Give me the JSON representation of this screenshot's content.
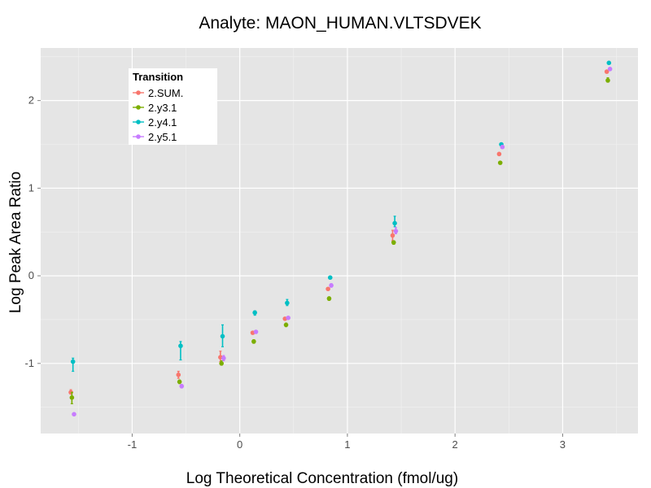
{
  "chart_data": {
    "type": "scatter",
    "title": "Analyte: MAON_HUMAN.VLTSDVEK",
    "xlabel": "Log Theoretical Concentration (fmol/ug)",
    "ylabel": "Log Peak Area Ratio",
    "xlim": [
      -1.85,
      3.7
    ],
    "ylim": [
      -1.8,
      2.6
    ],
    "xticks": [
      -1,
      0,
      1,
      2,
      3
    ],
    "yticks": [
      -1,
      0,
      1,
      2
    ],
    "grid": true,
    "legend": {
      "title": "Transition",
      "placement": "top-left"
    },
    "series": [
      {
        "name": "2.SUM.",
        "color": "#F8766D",
        "points": [
          {
            "x": -1.57,
            "y": -1.33,
            "lo": -1.35,
            "hi": -1.3
          },
          {
            "x": -0.57,
            "y": -1.13,
            "lo": -1.17,
            "hi": -1.09
          },
          {
            "x": -0.18,
            "y": -0.93,
            "lo": -0.98,
            "hi": -0.86
          },
          {
            "x": 0.12,
            "y": -0.65,
            "lo": -0.66,
            "hi": -0.64
          },
          {
            "x": 0.42,
            "y": -0.49,
            "lo": -0.5,
            "hi": -0.48
          },
          {
            "x": 0.82,
            "y": -0.15,
            "lo": -0.16,
            "hi": -0.14
          },
          {
            "x": 1.42,
            "y": 0.46,
            "lo": 0.4,
            "hi": 0.52
          },
          {
            "x": 2.41,
            "y": 1.39,
            "lo": 1.38,
            "hi": 1.4
          },
          {
            "x": 3.41,
            "y": 2.33,
            "lo": 2.32,
            "hi": 2.34
          }
        ]
      },
      {
        "name": "2.y3.1",
        "color": "#7CAE00",
        "points": [
          {
            "x": -1.56,
            "y": -1.39,
            "lo": -1.46,
            "hi": -1.33
          },
          {
            "x": -0.56,
            "y": -1.21,
            "lo": -1.23,
            "hi": -1.19
          },
          {
            "x": -0.17,
            "y": -1.0,
            "lo": -1.02,
            "hi": -0.97
          },
          {
            "x": 0.13,
            "y": -0.75,
            "lo": -0.77,
            "hi": -0.73
          },
          {
            "x": 0.43,
            "y": -0.56,
            "lo": -0.58,
            "hi": -0.54
          },
          {
            "x": 0.83,
            "y": -0.26,
            "lo": -0.28,
            "hi": -0.24
          },
          {
            "x": 1.43,
            "y": 0.38,
            "lo": 0.36,
            "hi": 0.4
          },
          {
            "x": 2.42,
            "y": 1.29,
            "lo": 1.28,
            "hi": 1.3
          },
          {
            "x": 3.42,
            "y": 2.23,
            "lo": 2.21,
            "hi": 2.26
          }
        ]
      },
      {
        "name": "2.y4.1",
        "color": "#00BFC4",
        "points": [
          {
            "x": -1.55,
            "y": -0.98,
            "lo": -1.09,
            "hi": -0.94
          },
          {
            "x": -0.55,
            "y": -0.8,
            "lo": -0.96,
            "hi": -0.75
          },
          {
            "x": -0.16,
            "y": -0.69,
            "lo": -0.81,
            "hi": -0.56
          },
          {
            "x": 0.14,
            "y": -0.42,
            "lo": -0.45,
            "hi": -0.4
          },
          {
            "x": 0.44,
            "y": -0.31,
            "lo": -0.34,
            "hi": -0.27
          },
          {
            "x": 0.84,
            "y": -0.02,
            "lo": -0.03,
            "hi": -0.01
          },
          {
            "x": 1.44,
            "y": 0.6,
            "lo": 0.56,
            "hi": 0.68
          },
          {
            "x": 2.43,
            "y": 1.5,
            "lo": 1.49,
            "hi": 1.51
          },
          {
            "x": 3.43,
            "y": 2.43,
            "lo": 2.42,
            "hi": 2.44
          }
        ]
      },
      {
        "name": "2.y5.1",
        "color": "#C77CFF",
        "points": [
          {
            "x": -1.54,
            "y": -1.58,
            "lo": -1.59,
            "hi": -1.57
          },
          {
            "x": -0.54,
            "y": -1.26,
            "lo": -1.28,
            "hi": -1.24
          },
          {
            "x": -0.15,
            "y": -0.94,
            "lo": -0.97,
            "hi": -0.91
          },
          {
            "x": 0.15,
            "y": -0.64,
            "lo": -0.65,
            "hi": -0.63
          },
          {
            "x": 0.45,
            "y": -0.48,
            "lo": -0.49,
            "hi": -0.47
          },
          {
            "x": 0.85,
            "y": -0.11,
            "lo": -0.13,
            "hi": -0.09
          },
          {
            "x": 1.45,
            "y": 0.51,
            "lo": 0.48,
            "hi": 0.55
          },
          {
            "x": 2.44,
            "y": 1.47,
            "lo": 1.46,
            "hi": 1.48
          },
          {
            "x": 3.44,
            "y": 2.36,
            "lo": 2.35,
            "hi": 2.37
          }
        ]
      }
    ]
  }
}
